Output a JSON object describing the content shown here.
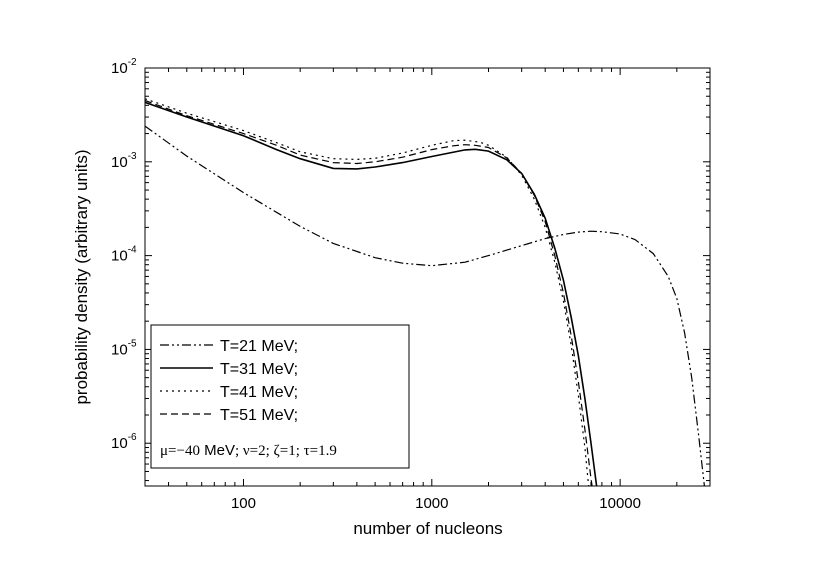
{
  "chart_data": {
    "type": "line",
    "xlabel": "number of nucleons",
    "ylabel": "probability density (arbitrary units)",
    "xscale": "log",
    "yscale": "log",
    "xlim": [
      30,
      30000
    ],
    "ylim": [
      3.5e-07,
      0.01
    ],
    "x_ticks": [
      {
        "value": 100,
        "label": "100"
      },
      {
        "value": 1000,
        "label": "1000"
      },
      {
        "value": 10000,
        "label": "10000"
      }
    ],
    "y_ticks": [
      {
        "value": 1e-06,
        "base": "10",
        "exp": "-6"
      },
      {
        "value": 1e-05,
        "base": "10",
        "exp": "-5"
      },
      {
        "value": 0.0001,
        "base": "10",
        "exp": "-4"
      },
      {
        "value": 0.001,
        "base": "10",
        "exp": "-3"
      },
      {
        "value": 0.01,
        "base": "10",
        "exp": "-2"
      }
    ],
    "series": [
      {
        "name": "T=21 MeV;",
        "dash": "9 3 2 3 2 3",
        "points": [
          [
            30,
            0.0024
          ],
          [
            50,
            0.00115
          ],
          [
            100,
            0.00047
          ],
          [
            200,
            0.000205
          ],
          [
            300,
            0.000135
          ],
          [
            500,
            9.5e-05
          ],
          [
            700,
            8.3e-05
          ],
          [
            1000,
            7.8e-05
          ],
          [
            1500,
            8.5e-05
          ],
          [
            2000,
            0.0001
          ],
          [
            3000,
            0.000128
          ],
          [
            4000,
            0.000152
          ],
          [
            5000,
            0.000168
          ],
          [
            6000,
            0.000178
          ],
          [
            7000,
            0.000182
          ],
          [
            8000,
            0.00018
          ],
          [
            10000,
            0.00017
          ],
          [
            12000,
            0.000148
          ],
          [
            15000,
            0.000105
          ],
          [
            18000,
            6e-05
          ],
          [
            20000,
            3.5e-05
          ],
          [
            22000,
            1.5e-05
          ],
          [
            24000,
            5e-06
          ],
          [
            26000,
            1.3e-06
          ],
          [
            28000,
            3.5e-07
          ]
        ]
      },
      {
        "name": "T=31 MeV;",
        "dash": "",
        "points": [
          [
            30,
            0.0043
          ],
          [
            50,
            0.003
          ],
          [
            100,
            0.0019
          ],
          [
            150,
            0.00135
          ],
          [
            200,
            0.00108
          ],
          [
            300,
            0.00085
          ],
          [
            400,
            0.00084
          ],
          [
            500,
            0.00088
          ],
          [
            700,
            0.00098
          ],
          [
            1000,
            0.00114
          ],
          [
            1500,
            0.00134
          ],
          [
            1700,
            0.00136
          ],
          [
            2000,
            0.0013
          ],
          [
            2500,
            0.00105
          ],
          [
            3000,
            0.00075
          ],
          [
            3500,
            0.00045
          ],
          [
            4000,
            0.00025
          ],
          [
            4500,
            0.00012
          ],
          [
            5000,
            5.5e-05
          ],
          [
            5500,
            2.2e-05
          ],
          [
            6000,
            8.5e-06
          ],
          [
            6500,
            3e-06
          ],
          [
            7000,
            1e-06
          ],
          [
            7500,
            3.5e-07
          ]
        ]
      },
      {
        "name": "T=41 MeV;",
        "dash": "2 4",
        "points": [
          [
            30,
            0.0047
          ],
          [
            50,
            0.0033
          ],
          [
            100,
            0.00215
          ],
          [
            150,
            0.0016
          ],
          [
            200,
            0.00128
          ],
          [
            300,
            0.00108
          ],
          [
            400,
            0.00106
          ],
          [
            500,
            0.00109
          ],
          [
            700,
            0.00124
          ],
          [
            1000,
            0.0015
          ],
          [
            1300,
            0.00168
          ],
          [
            1500,
            0.0017
          ],
          [
            1800,
            0.00162
          ],
          [
            2000,
            0.0015
          ],
          [
            2500,
            0.00112
          ],
          [
            3000,
            0.00072
          ],
          [
            3500,
            0.0004
          ],
          [
            4000,
            0.0002
          ],
          [
            4500,
            8.5e-05
          ],
          [
            5000,
            3.3e-05
          ],
          [
            5500,
            1.1e-05
          ],
          [
            6000,
            3.2e-06
          ],
          [
            6500,
            9e-07
          ],
          [
            6800,
            3.5e-07
          ]
        ]
      },
      {
        "name": "T=51 MeV;",
        "dash": "7 4",
        "points": [
          [
            30,
            0.0045
          ],
          [
            50,
            0.0031
          ],
          [
            100,
            0.002
          ],
          [
            150,
            0.0015
          ],
          [
            200,
            0.00118
          ],
          [
            300,
            0.00098
          ],
          [
            400,
            0.00096
          ],
          [
            500,
            0.001
          ],
          [
            700,
            0.00112
          ],
          [
            1000,
            0.00135
          ],
          [
            1300,
            0.00148
          ],
          [
            1500,
            0.00152
          ],
          [
            1700,
            0.0015
          ],
          [
            2000,
            0.00142
          ],
          [
            2500,
            0.0011
          ],
          [
            3000,
            0.00075
          ],
          [
            3500,
            0.00044
          ],
          [
            4000,
            0.00023
          ],
          [
            4500,
            0.0001
          ],
          [
            5000,
            4e-05
          ],
          [
            5500,
            1.4e-05
          ],
          [
            6000,
            4.5e-06
          ],
          [
            6500,
            1.4e-06
          ],
          [
            7000,
            4.2e-07
          ],
          [
            7100,
            3.5e-07
          ]
        ]
      }
    ],
    "legend": {
      "position": "bottom-left",
      "params": {
        "mu_sym": "μ",
        "mu_val": "=−40",
        "mev": " MeV",
        "rest": "; ν=2; ζ=1; τ=1.9"
      }
    }
  }
}
